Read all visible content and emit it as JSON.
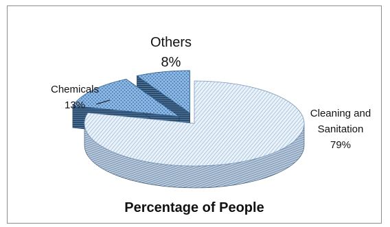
{
  "chart_data": {
    "type": "pie",
    "title": "Percentage of People",
    "categories": [
      "Cleaning and Sanitation",
      "Chemicals",
      "Others"
    ],
    "values": [
      79,
      13,
      8
    ],
    "value_suffix": "%",
    "style": "3d-exploded",
    "legend": "none",
    "colors": {
      "main_top": "#c9dcef",
      "main_side": "#7f9ab8",
      "accent_top": "#5b9bd5",
      "accent_side": "#2f5e8e"
    },
    "labels": [
      {
        "category_line1": "Cleaning and",
        "category_line2": "Sanitation",
        "value": "79%"
      },
      {
        "category_line1": "Chemicals",
        "category_line2": "",
        "value": "13%"
      },
      {
        "category_line1": "Others",
        "category_line2": "",
        "value": "8%"
      }
    ]
  }
}
